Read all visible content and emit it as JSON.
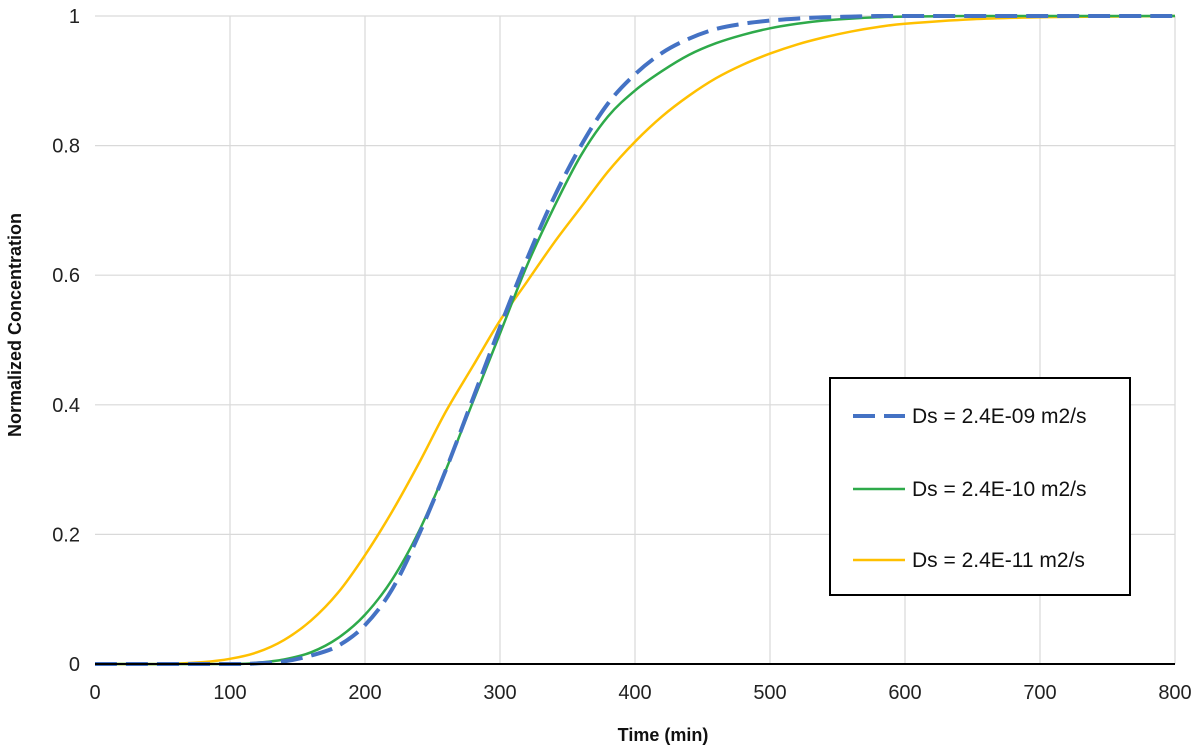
{
  "chart_data": {
    "type": "line",
    "title": "",
    "xlabel": "Time (min)",
    "ylabel": "Normalized Concentration",
    "xlim": [
      0,
      800
    ],
    "ylim": [
      0,
      1
    ],
    "xticks": [
      0,
      100,
      200,
      300,
      400,
      500,
      600,
      700,
      800
    ],
    "yticks": [
      0,
      0.2,
      0.4,
      0.6,
      0.8,
      1
    ],
    "xtick_labels": [
      "0",
      "100",
      "200",
      "300",
      "400",
      "500",
      "600",
      "700",
      "800"
    ],
    "ytick_labels": [
      "0",
      "0.2",
      "0.4",
      "0.6",
      "0.8",
      "1"
    ],
    "grid": true,
    "legend_position": "right-center",
    "series": [
      {
        "name": "Ds = 2.4E-09 m2/s",
        "color": "#4472C4",
        "dash": "dashed",
        "x": [
          0,
          100,
          120,
          140,
          160,
          180,
          200,
          220,
          240,
          260,
          280,
          300,
          320,
          340,
          360,
          380,
          400,
          420,
          440,
          460,
          480,
          500,
          520,
          540,
          560,
          580,
          600,
          650,
          700,
          750,
          800
        ],
        "y": [
          0,
          0,
          0.001,
          0.004,
          0.013,
          0.028,
          0.06,
          0.115,
          0.2,
          0.3,
          0.41,
          0.52,
          0.625,
          0.72,
          0.8,
          0.865,
          0.91,
          0.943,
          0.965,
          0.98,
          0.988,
          0.993,
          0.996,
          0.998,
          0.999,
          1,
          1,
          1,
          1,
          1,
          1
        ]
      },
      {
        "name": "Ds = 2.4E-10 m2/s",
        "color": "#2EAA4A",
        "dash": "solid",
        "x": [
          0,
          100,
          120,
          140,
          160,
          180,
          200,
          220,
          240,
          260,
          280,
          300,
          320,
          340,
          360,
          380,
          400,
          420,
          440,
          460,
          480,
          500,
          520,
          540,
          560,
          580,
          600,
          650,
          700,
          750,
          800
        ],
        "y": [
          0,
          0,
          0.002,
          0.007,
          0.018,
          0.04,
          0.076,
          0.13,
          0.205,
          0.3,
          0.405,
          0.51,
          0.615,
          0.705,
          0.785,
          0.845,
          0.885,
          0.915,
          0.94,
          0.958,
          0.971,
          0.981,
          0.988,
          0.993,
          0.996,
          0.998,
          0.999,
          1,
          1,
          1,
          1
        ]
      },
      {
        "name": "Ds = 2.4E-11 m2/s",
        "color": "#FFC000",
        "dash": "solid",
        "x": [
          0,
          50,
          80,
          100,
          120,
          140,
          160,
          180,
          200,
          220,
          240,
          260,
          280,
          300,
          320,
          340,
          360,
          380,
          400,
          420,
          440,
          460,
          480,
          500,
          520,
          540,
          560,
          580,
          600,
          650,
          700,
          750,
          800
        ],
        "y": [
          0,
          0,
          0.003,
          0.008,
          0.018,
          0.037,
          0.067,
          0.11,
          0.168,
          0.235,
          0.31,
          0.39,
          0.46,
          0.53,
          0.59,
          0.65,
          0.705,
          0.76,
          0.806,
          0.845,
          0.877,
          0.904,
          0.925,
          0.942,
          0.956,
          0.967,
          0.976,
          0.983,
          0.988,
          0.995,
          0.998,
          0.999,
          1
        ]
      }
    ]
  }
}
